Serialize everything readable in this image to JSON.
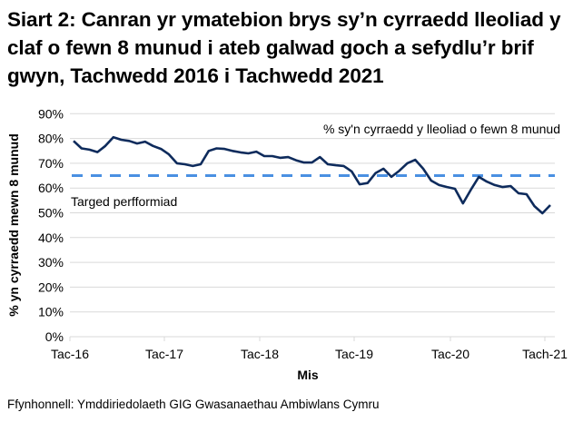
{
  "title": "Siart 2: Canran yr ymatebion brys sy’n cyrraedd lleoliad y claf o fewn 8 munud i ateb galwad goch a sefydlu’r brif gwyn, Tachwedd 2016 i Tachwedd 2021",
  "source": "Ffynhonnell: Ymddiriedolaeth GIG Gwasanaethau Ambiwlans Cymru",
  "colors": {
    "series": "#0e2b5c",
    "target": "#4a90e2",
    "grid": "#d9d9d9"
  },
  "chart_data": {
    "type": "line",
    "title": "Siart 2: Canran yr ymatebion brys sy’n cyrraedd lleoliad y claf o fewn 8 munud i ateb galwad goch a sefydlu’r brif gwyn, Tachwedd 2016 i Tachwedd 2021",
    "xlabel": "Mis",
    "ylabel": "% yn cyrraedd mewn 8 munud",
    "ylim": [
      0,
      90
    ],
    "yticks": [
      "0%",
      "10%",
      "20%",
      "30%",
      "40%",
      "50%",
      "60%",
      "70%",
      "80%",
      "90%"
    ],
    "xtick_labels": [
      "Tac-16",
      "Tac-17",
      "Tac-18",
      "Tac-19",
      "Tac-20",
      "Tach-21"
    ],
    "grid": true,
    "x_start": "Nov 2016",
    "x_end": "Nov 2021",
    "series": [
      {
        "name": "% sy'n cyrraedd y lleoliad o fewn 8 munud",
        "values": [
          79.0,
          76.0,
          75.5,
          74.5,
          77.0,
          80.5,
          79.5,
          79.0,
          78.0,
          78.7,
          77.0,
          75.8,
          73.6,
          70.0,
          69.6,
          68.9,
          69.6,
          75.0,
          76.0,
          75.8,
          75.0,
          74.4,
          74.0,
          74.7,
          72.9,
          72.9,
          72.2,
          72.5,
          71.2,
          70.3,
          70.3,
          72.5,
          69.6,
          69.2,
          68.9,
          66.7,
          61.5,
          62.0,
          66.0,
          67.8,
          64.5,
          67.0,
          70.0,
          71.4,
          67.8,
          63.0,
          61.2,
          60.4,
          59.7,
          53.8,
          59.3,
          64.5,
          62.6,
          61.2,
          60.4,
          60.8,
          57.9,
          57.5,
          52.7,
          49.8,
          53.1
        ]
      },
      {
        "name": "Targed perfformiad",
        "values_constant": 65
      }
    ],
    "annotations": [
      {
        "text": "% sy'n cyrraedd y lleoliad o fewn 8 munud",
        "target": "series"
      },
      {
        "text": "Targed perfformiad",
        "target": "target-line"
      }
    ]
  },
  "labels": {
    "series_annotation": "% sy'n cyrraedd y lleoliad o fewn 8 munud",
    "target_annotation": "Targed perfformiad",
    "xlabel": "Mis",
    "ylabel": "% yn cyrraedd mewn 8 munud"
  }
}
